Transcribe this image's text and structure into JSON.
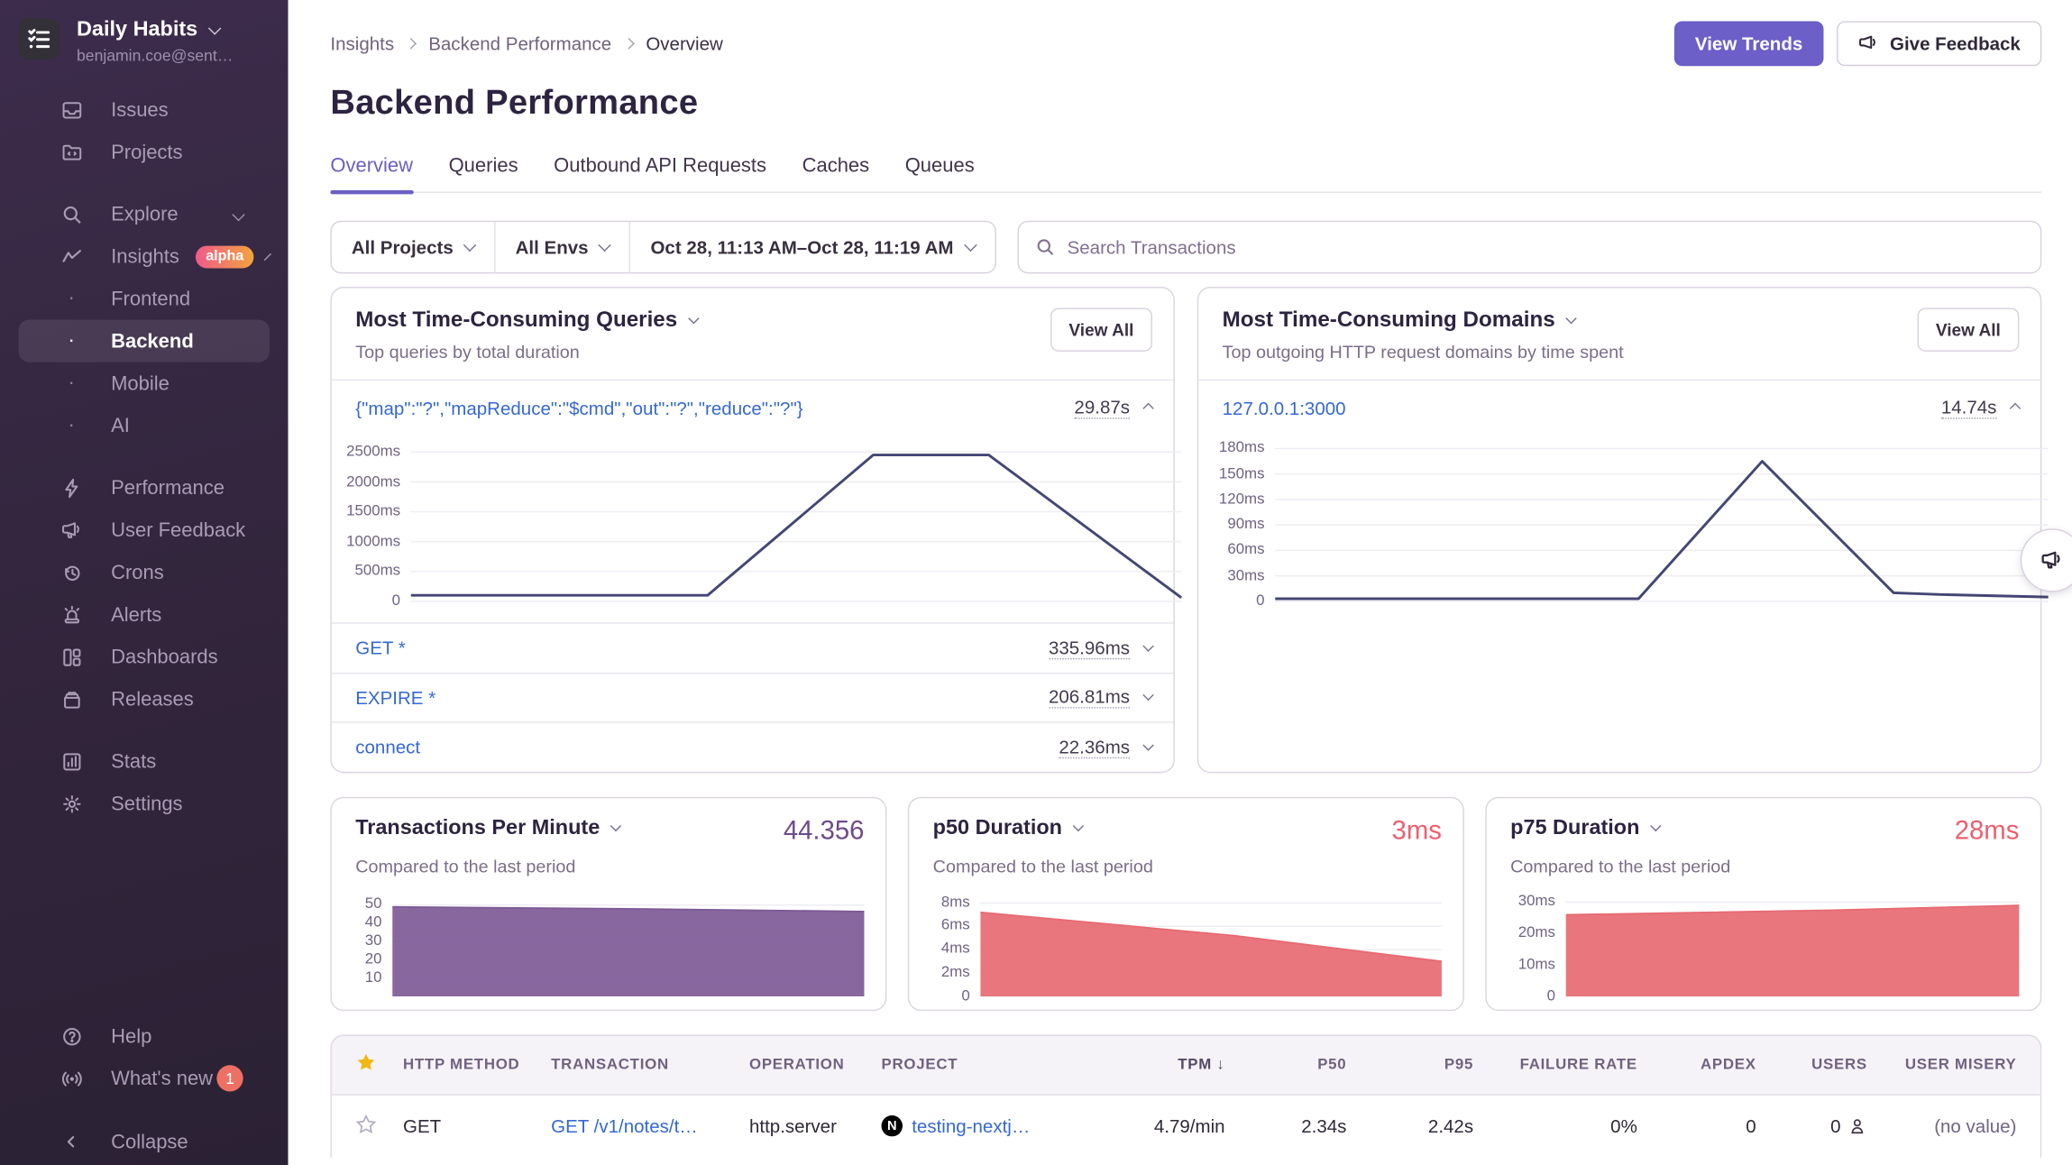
{
  "sidebar": {
    "org": {
      "name": "Daily Habits",
      "email": "benjamin.coe@sent…"
    },
    "items": [
      {
        "label": "Issues"
      },
      {
        "label": "Projects"
      },
      {
        "label": "Explore"
      },
      {
        "label": "Insights",
        "badge": "alpha"
      },
      {
        "label": "Frontend",
        "sub": true
      },
      {
        "label": "Backend",
        "sub": true,
        "active": true
      },
      {
        "label": "Mobile",
        "sub": true
      },
      {
        "label": "AI",
        "sub": true
      },
      {
        "label": "Performance"
      },
      {
        "label": "User Feedback"
      },
      {
        "label": "Crons"
      },
      {
        "label": "Alerts"
      },
      {
        "label": "Dashboards"
      },
      {
        "label": "Releases"
      },
      {
        "label": "Stats"
      },
      {
        "label": "Settings"
      }
    ],
    "footer": {
      "help": "Help",
      "whats_new": "What's new",
      "whats_new_count": "1",
      "collapse": "Collapse"
    }
  },
  "header": {
    "breadcrumb": [
      "Insights",
      "Backend Performance",
      "Overview"
    ],
    "title": "Backend Performance",
    "view_trends": "View Trends",
    "give_feedback": "Give Feedback"
  },
  "tabs": [
    {
      "label": "Overview",
      "active": true
    },
    {
      "label": "Queries"
    },
    {
      "label": "Outbound API Requests"
    },
    {
      "label": "Caches"
    },
    {
      "label": "Queues"
    }
  ],
  "filters": {
    "projects": "All Projects",
    "envs": "All Envs",
    "date_range": "Oct 28, 11:13 AM–Oct 28, 11:19 AM",
    "search_placeholder": "Search Transactions"
  },
  "cards": {
    "queries": {
      "title": "Most Time-Consuming Queries",
      "subtitle": "Top queries by total duration",
      "view_all": "View All",
      "expanded": {
        "label": "{\"map\":\"?\",\"mapReduce\":\"$cmd\",\"out\":\"?\",\"reduce\":\"?\"}",
        "value": "29.87s"
      },
      "rows": [
        {
          "label": "GET *",
          "value": "335.96ms"
        },
        {
          "label": "EXPIRE *",
          "value": "206.81ms"
        },
        {
          "label": "connect",
          "value": "22.36ms"
        }
      ]
    },
    "domains": {
      "title": "Most Time-Consuming Domains",
      "subtitle": "Top outgoing HTTP request domains by time spent",
      "view_all": "View All",
      "expanded": {
        "label": "127.0.0.1:3000",
        "value": "14.74s"
      }
    },
    "tpm": {
      "title": "Transactions Per Minute",
      "subtitle": "Compared to the last period",
      "value": "44.356"
    },
    "p50": {
      "title": "p50 Duration",
      "subtitle": "Compared to the last period",
      "value": "3ms"
    },
    "p75": {
      "title": "p75 Duration",
      "subtitle": "Compared to the last period",
      "value": "28ms"
    }
  },
  "table": {
    "columns": [
      {
        "label": "HTTP METHOD"
      },
      {
        "label": "TRANSACTION"
      },
      {
        "label": "OPERATION"
      },
      {
        "label": "PROJECT"
      },
      {
        "label": "TPM",
        "sort": "desc"
      },
      {
        "label": "P50"
      },
      {
        "label": "P95"
      },
      {
        "label": "FAILURE RATE"
      },
      {
        "label": "APDEX"
      },
      {
        "label": "USERS"
      },
      {
        "label": "USER MISERY"
      }
    ],
    "rows": [
      {
        "http_method": "GET",
        "transaction": "GET /v1/notes/t…",
        "operation": "http.server",
        "project": "testing-nextj…",
        "tpm": "4.79/min",
        "p50": "2.34s",
        "p95": "2.42s",
        "failure_rate": "0%",
        "apdex": "0",
        "users": "0",
        "user_misery": "(no value)"
      }
    ]
  },
  "chart_data": [
    {
      "id": "queries-trend",
      "type": "line",
      "title": "Most Time-Consuming Queries — selected query duration",
      "series_label": "{\"map\":\"?\",\"mapReduce\":\"$cmd\",\"out\":\"?\",\"reduce\":\"?\"}",
      "xlabel": "time (unlabeled)",
      "ylabel": "duration (ms)",
      "ylim": [
        0,
        2700
      ],
      "ticks": [
        2500,
        2000,
        1500,
        1000,
        500,
        0
      ],
      "tick_labels": [
        "2500ms",
        "2000ms",
        "1500ms",
        "1000ms",
        "500ms",
        "0"
      ],
      "points": [
        [
          0,
          100
        ],
        [
          0.385,
          100
        ],
        [
          0.6,
          2450
        ],
        [
          0.75,
          2450
        ],
        [
          1,
          60
        ]
      ],
      "color": "#444674",
      "grid": true,
      "label_width": 54
    },
    {
      "id": "domains-trend",
      "type": "line",
      "title": "Most Time-Consuming Domains — 127.0.0.1:3000 time spent",
      "series_label": "127.0.0.1:3000",
      "xlabel": "time (unlabeled)",
      "ylabel": "duration (ms)",
      "ylim": [
        0,
        190
      ],
      "ticks": [
        180,
        150,
        120,
        90,
        60,
        30,
        0
      ],
      "tick_labels": [
        "180ms",
        "150ms",
        "120ms",
        "90ms",
        "60ms",
        "30ms",
        "0"
      ],
      "points": [
        [
          0,
          3
        ],
        [
          0.47,
          3
        ],
        [
          0.63,
          165
        ],
        [
          0.8,
          10
        ],
        [
          0.86,
          8
        ],
        [
          1,
          5
        ]
      ],
      "color": "#444674",
      "grid": true,
      "label_width": 52
    },
    {
      "id": "tpm-trend",
      "type": "area",
      "title": "Transactions Per Minute",
      "current_value": "44.356",
      "ylim": [
        0,
        55
      ],
      "ticks": [
        50,
        40,
        30,
        20,
        10
      ],
      "tick_labels": [
        "50",
        "40",
        "30",
        "20",
        "10"
      ],
      "points": [
        [
          0,
          49
        ],
        [
          0.5,
          48
        ],
        [
          1,
          46.5
        ]
      ],
      "color": "#7d5a96",
      "grid": true,
      "label_width": 28
    },
    {
      "id": "p50-trend",
      "type": "area",
      "title": "p50 Duration",
      "current_value": "3ms",
      "ylim": [
        0,
        8.6
      ],
      "ticks": [
        8,
        6,
        4,
        2,
        0
      ],
      "tick_labels": [
        "8ms",
        "6ms",
        "4ms",
        "2ms",
        "0"
      ],
      "points": [
        [
          0,
          7.2
        ],
        [
          0.55,
          5.2
        ],
        [
          1,
          3
        ]
      ],
      "color": "#e76a72",
      "grid": true,
      "label_width": 36
    },
    {
      "id": "p75-trend",
      "type": "area",
      "title": "p75 Duration",
      "current_value": "28ms",
      "ylim": [
        0,
        32
      ],
      "ticks": [
        30,
        20,
        10,
        0
      ],
      "tick_labels": [
        "30ms",
        "20ms",
        "10ms",
        "0"
      ],
      "points": [
        [
          0,
          26
        ],
        [
          0.6,
          27.5
        ],
        [
          1,
          29
        ]
      ],
      "color": "#e76a72",
      "grid": true,
      "label_width": 42
    }
  ],
  "colors": {
    "accent_purple": "#6c5fc7",
    "link_blue": "#3568d4",
    "line_chart": "#444674",
    "tpm_fill": "#7d5a96",
    "duration_fill": "#e76a72",
    "value_red": "#ee5f6d",
    "value_purple": "#6e4a8c",
    "star_gold": "#f2b712",
    "whats_new_badge": "#ee7064"
  }
}
